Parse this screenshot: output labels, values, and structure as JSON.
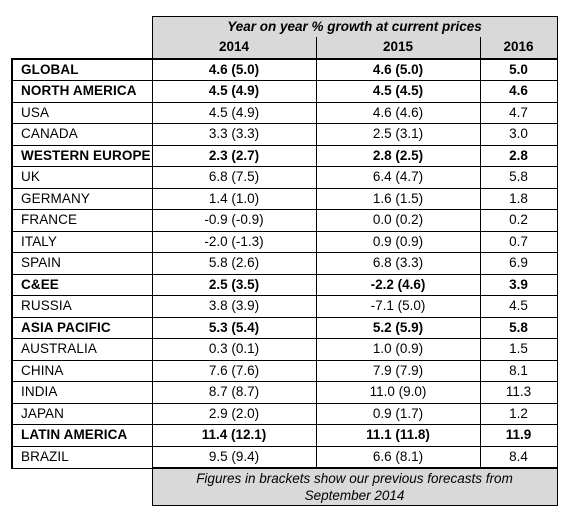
{
  "header": {
    "caption": "Year on year % growth at current prices",
    "years": [
      "2014",
      "2015",
      "2016"
    ]
  },
  "rows": [
    {
      "region": "GLOBAL",
      "y2014": "4.6 (5.0)",
      "y2015": "4.6 (5.0)",
      "y2016": "5.0",
      "bold": true
    },
    {
      "region": "NORTH AMERICA",
      "y2014": "4.5 (4.9)",
      "y2015": "4.5 (4.5)",
      "y2016": "4.6",
      "bold": true
    },
    {
      "region": "USA",
      "y2014": "4.5 (4.9)",
      "y2015": "4.6 (4.6)",
      "y2016": "4.7",
      "bold": false
    },
    {
      "region": "CANADA",
      "y2014": "3.3 (3.3)",
      "y2015": "2.5 (3.1)",
      "y2016": "3.0",
      "bold": false
    },
    {
      "region": "WESTERN EUROPE",
      "y2014": "2.3 (2.7)",
      "y2015": "2.8 (2.5)",
      "y2016": "2.8",
      "bold": true
    },
    {
      "region": "UK",
      "y2014": "6.8 (7.5)",
      "y2015": "6.4 (4.7)",
      "y2016": "5.8",
      "bold": false
    },
    {
      "region": "GERMANY",
      "y2014": "1.4 (1.0)",
      "y2015": "1.6 (1.5)",
      "y2016": "1.8",
      "bold": false
    },
    {
      "region": "FRANCE",
      "y2014": "-0.9 (-0.9)",
      "y2015": "0.0 (0.2)",
      "y2016": "0.2",
      "bold": false
    },
    {
      "region": "ITALY",
      "y2014": "-2.0 (-1.3)",
      "y2015": "0.9 (0.9)",
      "y2016": "0.7",
      "bold": false
    },
    {
      "region": "SPAIN",
      "y2014": "5.8 (2.6)",
      "y2015": "6.8 (3.3)",
      "y2016": "6.9",
      "bold": false
    },
    {
      "region": "C&EE",
      "y2014": "2.5 (3.5)",
      "y2015": "-2.2 (4.6)",
      "y2016": "3.9",
      "bold": true
    },
    {
      "region": "RUSSIA",
      "y2014": "3.8 (3.9)",
      "y2015": "-7.1 (5.0)",
      "y2016": "4.5",
      "bold": false
    },
    {
      "region": "ASIA PACIFIC",
      "y2014": "5.3 (5.4)",
      "y2015": "5.2 (5.9)",
      "y2016": "5.8",
      "bold": true
    },
    {
      "region": "AUSTRALIA",
      "y2014": "0.3 (0.1)",
      "y2015": "1.0 (0.9)",
      "y2016": "1.5",
      "bold": false
    },
    {
      "region": "CHINA",
      "y2014": "7.6 (7.6)",
      "y2015": "7.9 (7.9)",
      "y2016": "8.1",
      "bold": false
    },
    {
      "region": "INDIA",
      "y2014": "8.7 (8.7)",
      "y2015": "11.0 (9.0)",
      "y2016": "11.3",
      "bold": false
    },
    {
      "region": "JAPAN",
      "y2014": "2.9 (2.0)",
      "y2015": "0.9 (1.7)",
      "y2016": "1.2",
      "bold": false
    },
    {
      "region": "LATIN AMERICA",
      "y2014": "11.4 (12.1)",
      "y2015": "11.1 (11.8)",
      "y2016": "11.9",
      "bold": true
    },
    {
      "region": "BRAZIL",
      "y2014": "9.5 (9.4)",
      "y2015": "6.6 (8.1)",
      "y2016": "8.4",
      "bold": false
    }
  ],
  "footnote": {
    "line1": "Figures in brackets show our previous forecasts from",
    "line2": "September 2014"
  },
  "colors": {
    "header_shade": "#d9d9d9",
    "border": "#000000"
  }
}
